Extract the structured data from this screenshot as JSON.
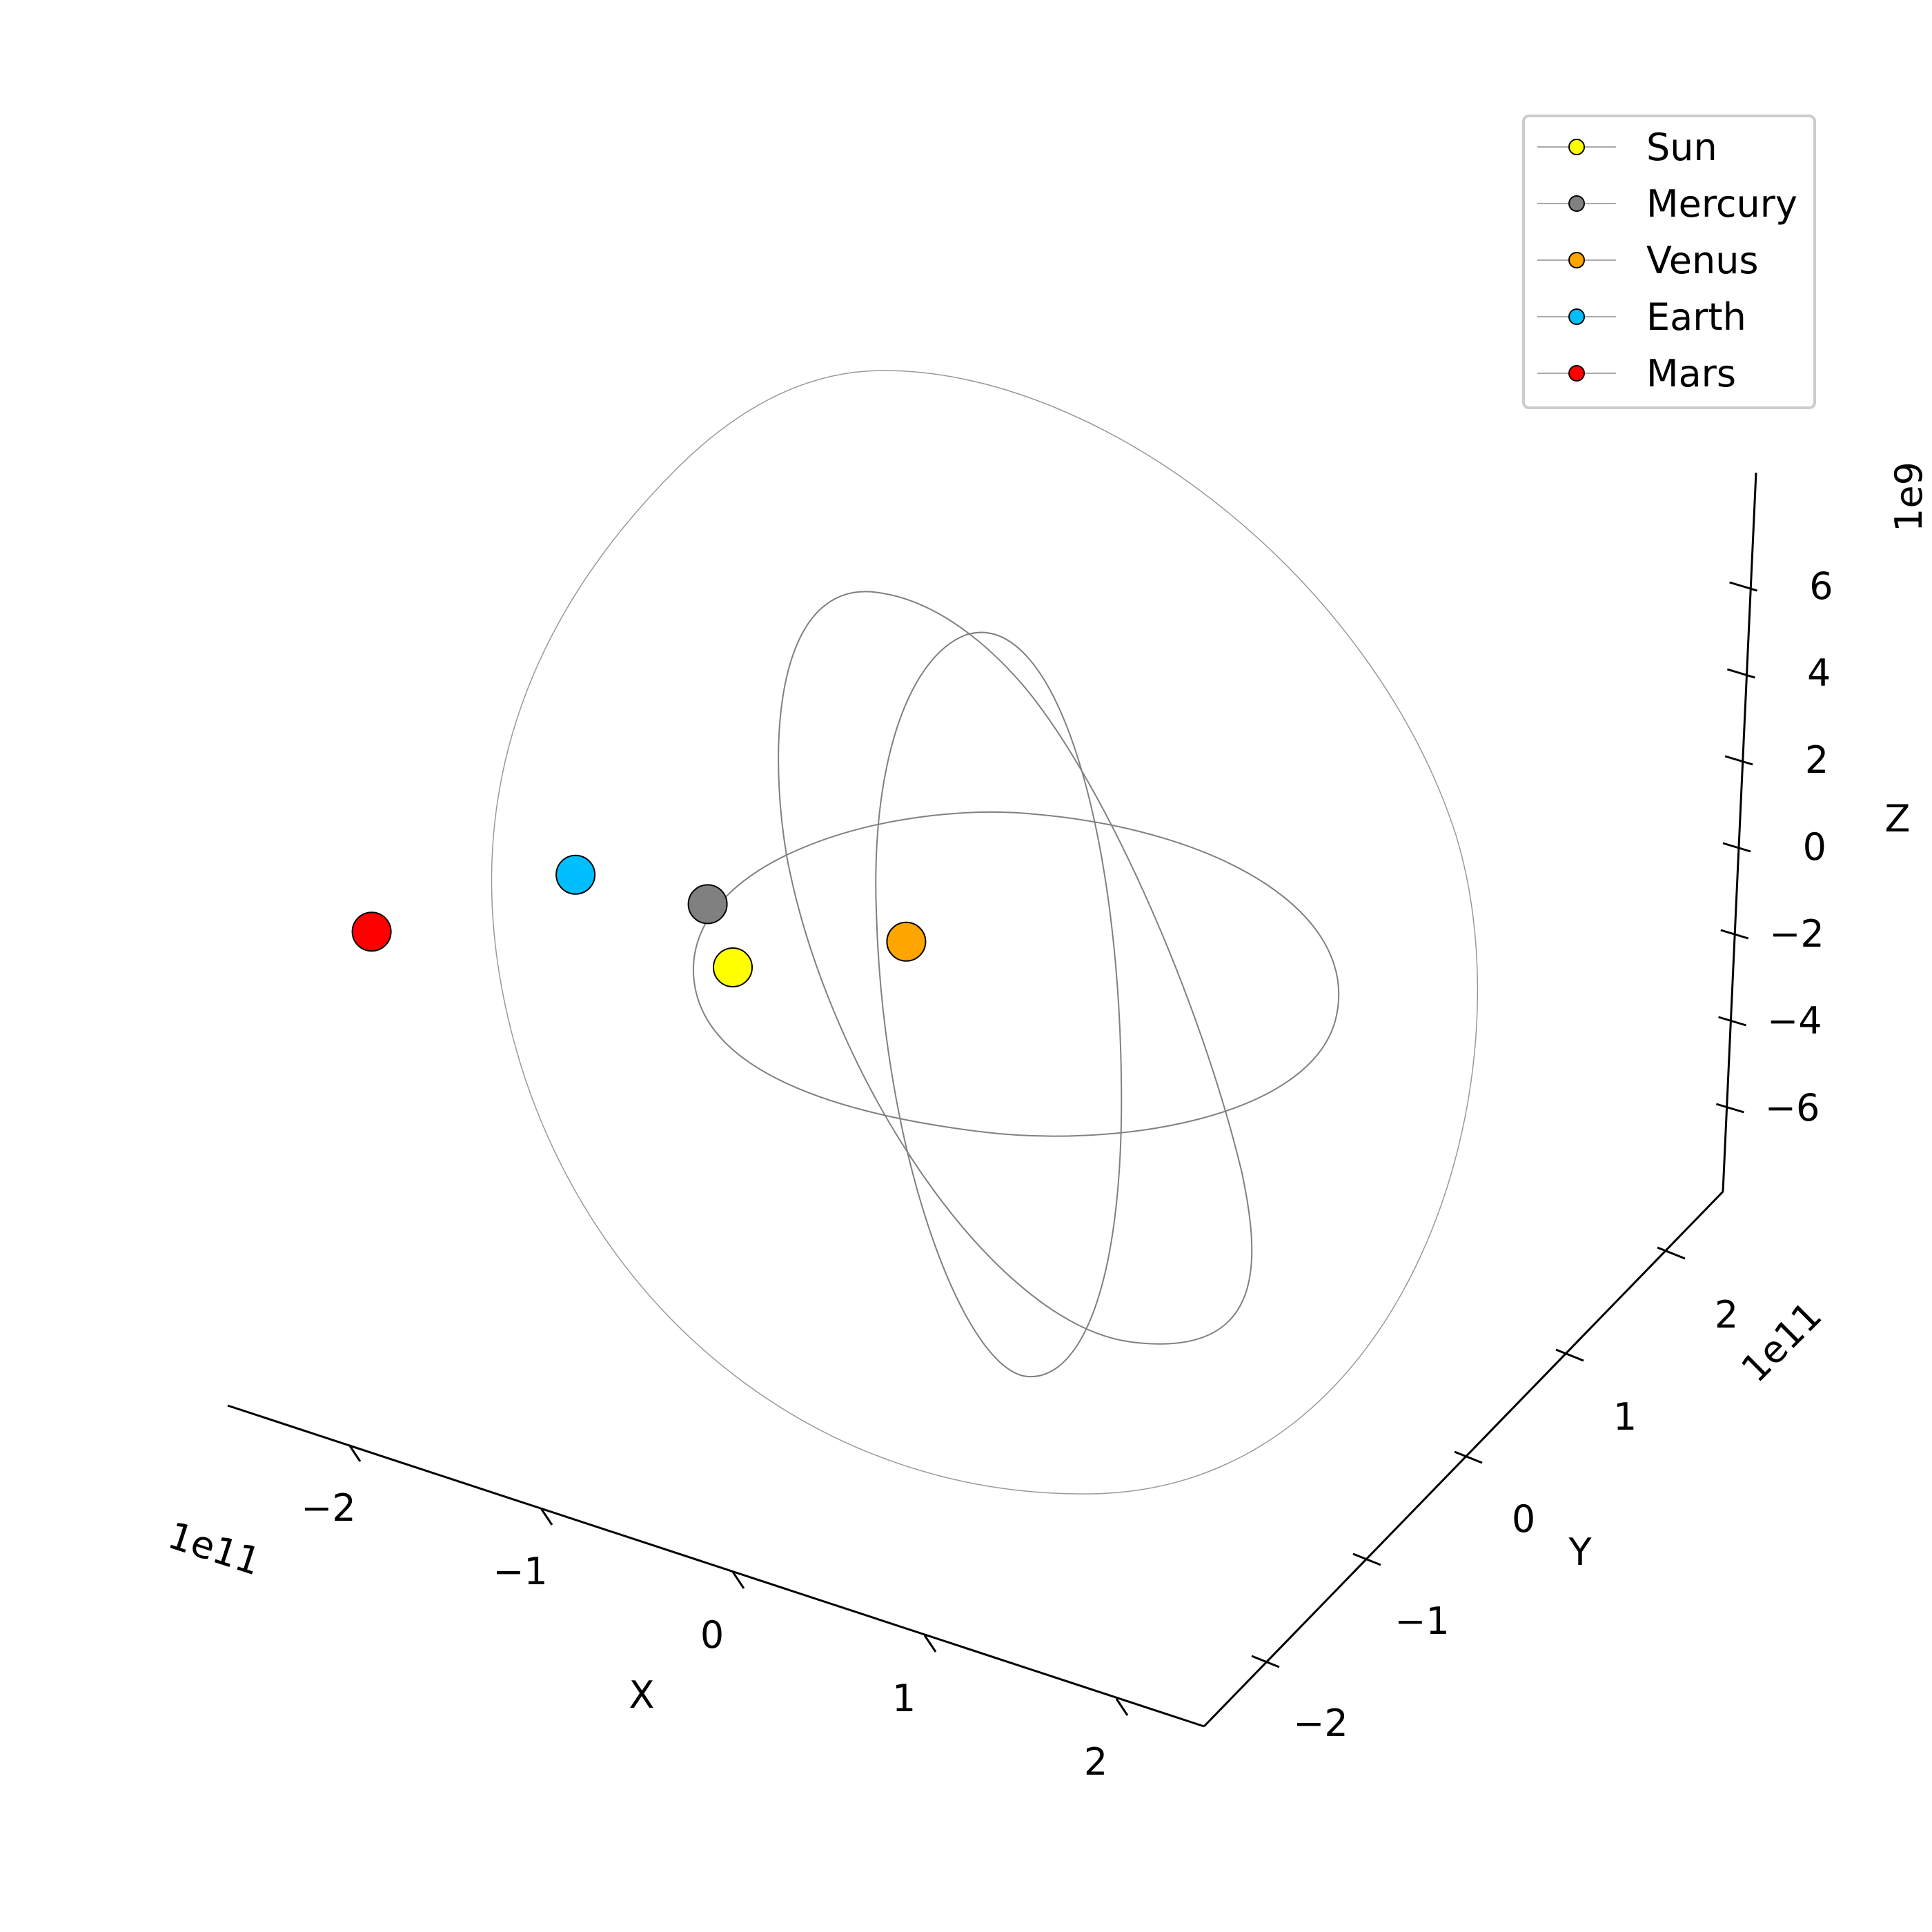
{
  "chart_data": {
    "type": "scatter",
    "projection": "3d",
    "title": "",
    "axes": {
      "x": {
        "label": "X",
        "offset_label": "1e11",
        "ticks": [
          "−2",
          "−1",
          "0",
          "1",
          "2"
        ],
        "range": [
          -2.6,
          2.6
        ]
      },
      "y": {
        "label": "Y",
        "offset_label": "1e11",
        "ticks": [
          "−2",
          "−1",
          "0",
          "1",
          "2"
        ],
        "range": [
          -2.6,
          2.6
        ]
      },
      "z": {
        "label": "Z",
        "offset_label": "1e9",
        "ticks": [
          "−6",
          "−4",
          "−2",
          "0",
          "2",
          "4",
          "6"
        ],
        "range": [
          -8,
          8
        ]
      }
    },
    "grid": false,
    "legend": {
      "position": "top-right"
    },
    "series": [
      {
        "name": "Sun",
        "color": "#ffff00",
        "x": 0.0,
        "y": 0.0,
        "z": 0.0
      },
      {
        "name": "Mercury",
        "color": "#808080",
        "x": -0.35,
        "y": 0.4,
        "z": 0.0
      },
      {
        "name": "Venus",
        "color": "#ffa500",
        "x": 0.6,
        "y": 0.6,
        "z": 0.0
      },
      {
        "name": "Earth",
        "color": "#00bfff",
        "x": -1.0,
        "y": 0.3,
        "z": 0.0
      },
      {
        "name": "Mars",
        "color": "#ff0000",
        "x": -1.6,
        "y": -0.6,
        "z": 0.0
      }
    ],
    "orbit_color": "#808080"
  }
}
